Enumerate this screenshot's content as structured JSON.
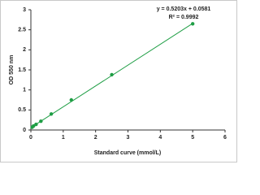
{
  "chart_data": {
    "type": "scatter",
    "x_label": "Standard curve (mmol/L)",
    "y_label": "OD 550 nm",
    "annotations": [
      "y = 0.5203x + 0.0581",
      "R² = 0.9992"
    ],
    "series": [
      {
        "color": "#1f9e45",
        "x": [
          0.04,
          0.08,
          0.16,
          0.31,
          0.63,
          1.25,
          2.5,
          5
        ],
        "values": [
          0.07,
          0.1,
          0.14,
          0.22,
          0.4,
          0.75,
          1.38,
          2.65
        ]
      }
    ],
    "trendline": {
      "slope": 0.5203,
      "intercept": 0.0581,
      "color": "#1f9e45"
    },
    "xlim": [
      0,
      6
    ],
    "xticks": [
      0,
      1,
      2,
      3,
      4,
      5,
      6
    ],
    "ylim": [
      0,
      3
    ],
    "yticks": [
      0,
      0.5,
      1,
      1.5,
      2,
      2.5,
      3
    ]
  }
}
